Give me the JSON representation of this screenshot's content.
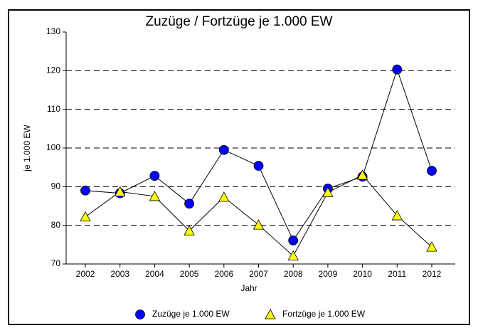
{
  "chart_data": {
    "type": "line",
    "title": "Zuzüge / Fortzüge je 1.000 EW",
    "x_label": "Jahr",
    "y_label": "je 1.000 EW",
    "categories": [
      "2002",
      "2003",
      "2004",
      "2005",
      "2006",
      "2007",
      "2008",
      "2009",
      "2010",
      "2011",
      "2012"
    ],
    "series": [
      {
        "name": "Zuzüge je 1.000 EW",
        "color": "#0000ff",
        "marker": "circle",
        "values": [
          89.0,
          88.3,
          92.8,
          85.6,
          99.5,
          95.4,
          76.1,
          89.5,
          92.6,
          120.3,
          94.1
        ]
      },
      {
        "name": "Fortzüge je 1.000 EW",
        "color": "#ffff00",
        "marker": "triangle",
        "values": [
          82.2,
          88.7,
          87.5,
          78.6,
          87.3,
          80.1,
          72.1,
          88.5,
          93.0,
          82.5,
          74.4
        ]
      }
    ],
    "ylim": [
      70,
      130
    ],
    "yticks": [
      70,
      80,
      90,
      100,
      110,
      120,
      130
    ],
    "grid": true,
    "legend": "bottom"
  }
}
